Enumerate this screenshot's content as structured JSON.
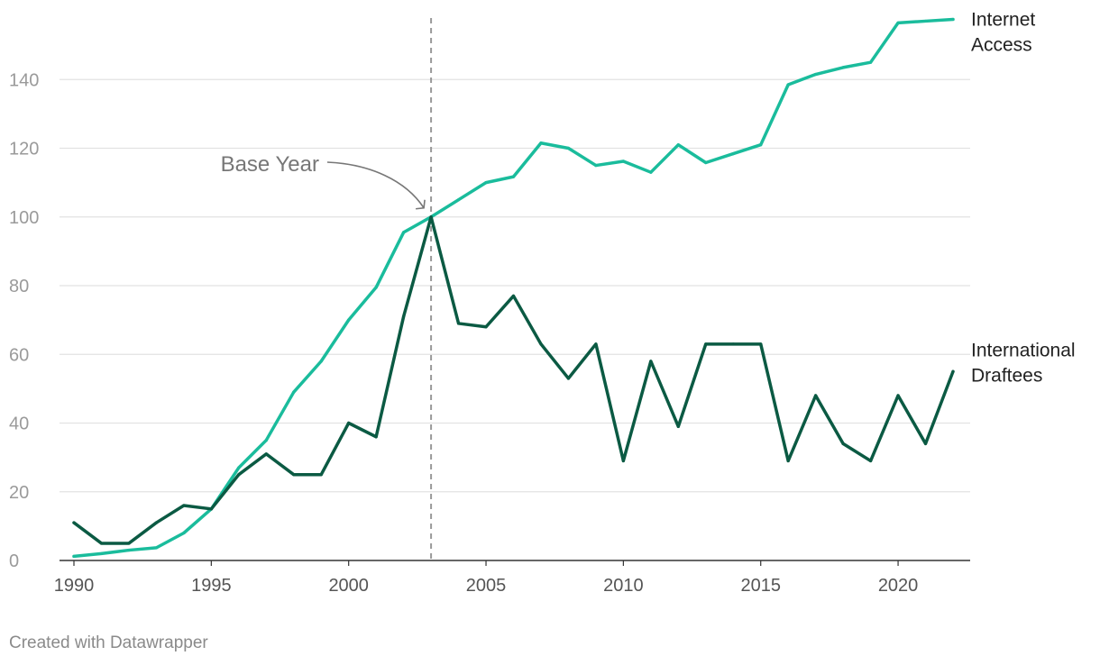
{
  "chart_data": {
    "type": "line",
    "x": [
      1990,
      1991,
      1992,
      1993,
      1994,
      1995,
      1996,
      1997,
      1998,
      1999,
      2000,
      2001,
      2002,
      2003,
      2004,
      2005,
      2006,
      2007,
      2008,
      2009,
      2010,
      2011,
      2012,
      2013,
      2014,
      2015,
      2016,
      2017,
      2018,
      2019,
      2020,
      2021,
      2022
    ],
    "series": [
      {
        "name_lines": [
          "Internet",
          "Access"
        ],
        "color": "#1abc9c",
        "values": [
          1.2,
          2,
          3,
          3.7,
          8,
          15,
          27,
          35,
          49,
          58,
          70,
          79.5,
          95.5,
          100,
          105,
          110,
          111.7,
          121.5,
          120,
          115,
          116.2,
          113,
          121,
          115.8,
          118.4,
          121,
          138.5,
          141.5,
          143.5,
          145,
          156.5,
          157,
          157.5
        ]
      },
      {
        "name_lines": [
          "International",
          "Draftees"
        ],
        "color": "#0b5a43",
        "values": [
          11,
          5,
          5,
          11,
          16,
          15,
          25,
          31,
          25,
          25,
          40,
          36,
          71,
          100,
          69,
          68,
          77,
          63,
          53,
          63,
          29,
          58,
          39,
          63,
          63,
          63,
          29,
          48,
          34,
          29,
          48,
          34,
          55
        ]
      }
    ],
    "xlim": [
      1990,
      2022
    ],
    "ylim": [
      0,
      160
    ],
    "x_ticks": [
      1990,
      1995,
      2000,
      2005,
      2010,
      2015,
      2020
    ],
    "y_ticks": [
      0,
      20,
      40,
      60,
      80,
      100,
      120,
      140
    ],
    "grid": true,
    "annotation": {
      "text": "Base Year",
      "x": 2003,
      "y": 100
    }
  },
  "credit": "Created with Datawrapper"
}
